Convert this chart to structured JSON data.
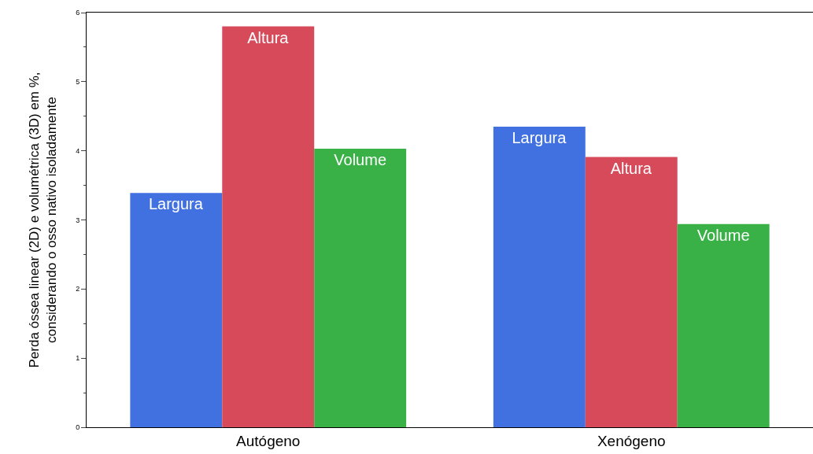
{
  "chart_data": {
    "type": "bar",
    "ylabel": "Perda óssea linear (2D) e volumétrica (3D) em %,\nconsiderando o osso nativo isoladamente",
    "categories": [
      "Autógeno",
      "Xenógeno"
    ],
    "series": [
      {
        "name": "Largura",
        "color": "#4171e0",
        "values": [
          3.39,
          4.35
        ]
      },
      {
        "name": "Altura",
        "color": "#d64a5a",
        "values": [
          5.8,
          3.91
        ]
      },
      {
        "name": "Volume",
        "color": "#39b146",
        "values": [
          4.03,
          2.94
        ]
      }
    ],
    "ylim": [
      0,
      6
    ],
    "yticks": [
      0,
      1,
      2,
      3,
      4,
      5,
      6
    ],
    "legend": false
  }
}
